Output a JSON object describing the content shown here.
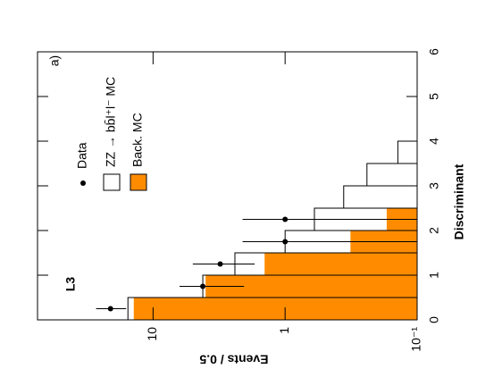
{
  "chart_data": {
    "type": "histogram",
    "x_label": "Discriminant",
    "y_label": "Events / 0.5",
    "annotations": [
      "a)",
      "L3"
    ],
    "log_y": true,
    "xlim": [
      0,
      6
    ],
    "xticks": [
      0,
      1,
      2,
      3,
      4,
      5,
      6
    ],
    "ylim": [
      0.1,
      75
    ],
    "yticks": [
      {
        "value": 0.1,
        "label": "10⁻¹"
      },
      1,
      10
    ],
    "series": [
      {
        "name": "ZZ → bb̄l⁺l⁻ MC",
        "color": "#000000",
        "filled": false,
        "bins": [
          0,
          0.5,
          1,
          1.5,
          2,
          2.5,
          3,
          3.5,
          4
        ],
        "values": [
          15.5,
          4.2,
          2.4,
          1.0,
          0.6,
          0.36,
          0.24,
          0.14
        ]
      },
      {
        "name": "Back. MC",
        "color": "#ff8c00",
        "filled": true,
        "bins": [
          0,
          0.5,
          1,
          1.5,
          2,
          2.5
        ],
        "values": [
          14,
          4.0,
          1.43,
          0.32,
          0.17
        ]
      }
    ],
    "points": {
      "name": "Data",
      "color": "#000000",
      "x": [
        0.25,
        0.75,
        1.25,
        1.75,
        2.25
      ],
      "values": [
        21,
        4.2,
        3.1,
        1.0,
        1.0
      ],
      "err_low": [
        16,
        2.05,
        1.7,
        0.1,
        0.1
      ],
      "err_high": [
        27,
        6.3,
        5.0,
        2.1,
        2.1
      ]
    }
  }
}
